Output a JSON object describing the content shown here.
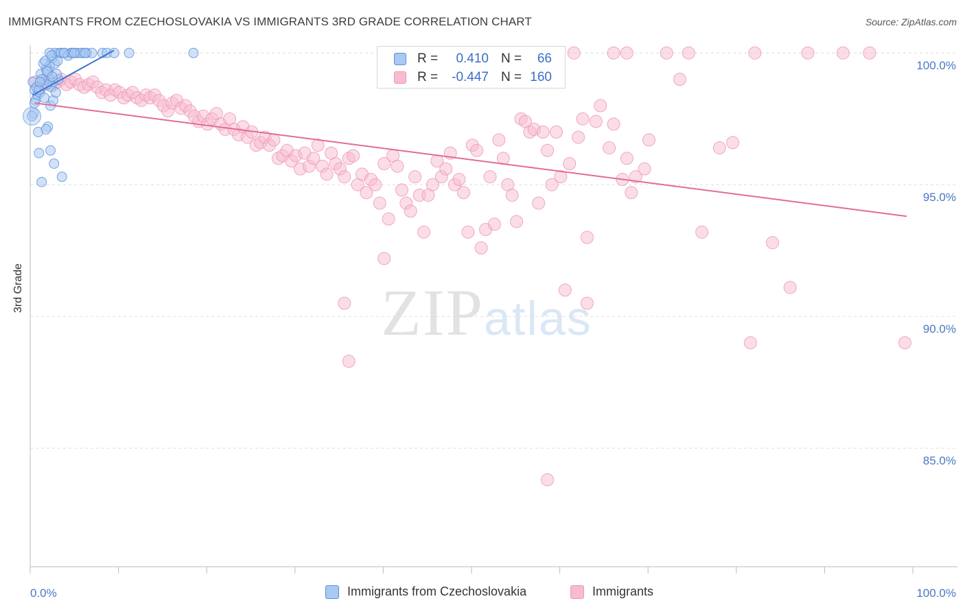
{
  "title": "IMMIGRANTS FROM CZECHOSLOVAKIA VS IMMIGRANTS 3RD GRADE CORRELATION CHART",
  "source": "Source: ZipAtlas.com",
  "watermark": {
    "zip": "ZIP",
    "atlas": "atlas"
  },
  "legend_top": {
    "rows": [
      {
        "r_label": "R = ",
        "r_value": "0.410",
        "n_label": "N = ",
        "n_value": "66",
        "swatch_color": "#a9c8f2"
      },
      {
        "r_label": "R = ",
        "r_value": "-0.447",
        "n_label": "N = ",
        "n_value": "160",
        "swatch_color": "#f8bcd0"
      }
    ]
  },
  "legend_bottom": [
    {
      "label": "Immigrants from Czechoslovakia",
      "color": "#a9c8f2"
    },
    {
      "label": "Immigrants",
      "color": "#f8bcd0"
    }
  ],
  "colors": {
    "blue_fill": "#a9c8f2",
    "blue_stroke": "#5b8fd8",
    "blue_line": "#3a76cf",
    "pink_fill": "#f8bcd0",
    "pink_stroke": "#ee94b2",
    "pink_line": "#e26a98",
    "grid": "#dddddd",
    "tick_text": "#4a77c4"
  },
  "chart_data": {
    "type": "scatter",
    "title": "IMMIGRANTS FROM CZECHOSLOVAKIA VS IMMIGRANTS 3RD GRADE CORRELATION CHART",
    "xlabel": "",
    "ylabel": "3rd Grade",
    "xlim": [
      0,
      100
    ],
    "ylim": [
      80.5,
      100.5
    ],
    "x_tick_labels": [
      "0.0%",
      "100.0%"
    ],
    "y_ticks": [
      100,
      95,
      90,
      85
    ],
    "y_tick_labels": [
      "100.0%",
      "95.0%",
      "90.0%",
      "85.0%"
    ],
    "grid": true,
    "legend_placement": "top-center",
    "series": [
      {
        "name": "Immigrants from Czechoslovakia",
        "color": "#a9c8f2",
        "R": 0.41,
        "N": 66,
        "trend": {
          "x": [
            0.3,
            9.5
          ],
          "y": [
            98.4,
            100.1
          ]
        },
        "points": [
          [
            0.3,
            98.9
          ],
          [
            0.5,
            98.6
          ],
          [
            0.8,
            98.4
          ],
          [
            0.6,
            98.2
          ],
          [
            0.4,
            97.7
          ],
          [
            0.9,
            97.0
          ],
          [
            1.0,
            96.2
          ],
          [
            1.3,
            95.1
          ],
          [
            1.1,
            98.5
          ],
          [
            1.4,
            98.8
          ],
          [
            1.6,
            99.0
          ],
          [
            1.2,
            99.2
          ],
          [
            1.8,
            99.4
          ],
          [
            2.0,
            99.3
          ],
          [
            1.5,
            99.6
          ],
          [
            2.2,
            99.5
          ],
          [
            2.5,
            99.8
          ],
          [
            2.8,
            100.0
          ],
          [
            1.7,
            99.7
          ],
          [
            2.1,
            98.9
          ],
          [
            2.4,
            98.7
          ],
          [
            2.6,
            98.9
          ],
          [
            1.9,
            98.8
          ],
          [
            1.6,
            98.3
          ],
          [
            2.3,
            98.0
          ],
          [
            2.0,
            97.2
          ],
          [
            1.8,
            97.1
          ],
          [
            2.3,
            96.3
          ],
          [
            2.7,
            95.8
          ],
          [
            3.6,
            95.3
          ],
          [
            2.6,
            98.2
          ],
          [
            2.9,
            98.5
          ],
          [
            3.2,
            99.0
          ],
          [
            3.0,
            99.2
          ],
          [
            2.2,
            100.0
          ],
          [
            3.3,
            100.0
          ],
          [
            3.5,
            100.0
          ],
          [
            4.6,
            100.0
          ],
          [
            4.9,
            100.0
          ],
          [
            5.3,
            100.0
          ],
          [
            6.0,
            100.0
          ],
          [
            6.4,
            100.0
          ],
          [
            7.0,
            100.0
          ],
          [
            8.2,
            100.0
          ],
          [
            8.7,
            100.0
          ],
          [
            9.5,
            100.0
          ],
          [
            11.2,
            100.0
          ],
          [
            18.5,
            100.0
          ],
          [
            3.9,
            100.0
          ],
          [
            4.3,
            99.9
          ],
          [
            4.7,
            100.0
          ],
          [
            5.7,
            100.0
          ],
          [
            6.2,
            100.0
          ],
          [
            2.8,
            99.6
          ],
          [
            1.3,
            99.0
          ],
          [
            0.7,
            98.7
          ],
          [
            1.0,
            98.6
          ],
          [
            0.5,
            98.1
          ],
          [
            1.1,
            98.9
          ],
          [
            1.9,
            99.3
          ],
          [
            2.5,
            99.1
          ],
          [
            3.1,
            99.7
          ],
          [
            3.8,
            100.0
          ],
          [
            5.0,
            100.0
          ],
          [
            2.4,
            99.9
          ],
          [
            0.2,
            97.6
          ]
        ]
      },
      {
        "name": "Immigrants",
        "color": "#f8bcd0",
        "R": -0.447,
        "N": 160,
        "trend": {
          "x": [
            0.5,
            99.3
          ],
          "y": [
            98.1,
            93.8
          ]
        },
        "points": [
          [
            0.6,
            98.9
          ],
          [
            1.1,
            98.7
          ],
          [
            1.6,
            98.8
          ],
          [
            2.1,
            99.0
          ],
          [
            2.6,
            98.8
          ],
          [
            3.1,
            98.9
          ],
          [
            3.5,
            99.0
          ],
          [
            4.1,
            98.8
          ],
          [
            4.6,
            98.9
          ],
          [
            5.1,
            99.0
          ],
          [
            5.6,
            98.8
          ],
          [
            6.1,
            98.7
          ],
          [
            6.6,
            98.8
          ],
          [
            7.1,
            98.9
          ],
          [
            7.6,
            98.7
          ],
          [
            8.1,
            98.5
          ],
          [
            8.6,
            98.6
          ],
          [
            9.1,
            98.4
          ],
          [
            9.6,
            98.6
          ],
          [
            10.1,
            98.5
          ],
          [
            10.6,
            98.3
          ],
          [
            11.1,
            98.4
          ],
          [
            11.6,
            98.5
          ],
          [
            12.1,
            98.3
          ],
          [
            12.6,
            98.2
          ],
          [
            13.1,
            98.4
          ],
          [
            13.6,
            98.3
          ],
          [
            14.1,
            98.4
          ],
          [
            14.6,
            98.2
          ],
          [
            15.1,
            98.0
          ],
          [
            15.6,
            97.8
          ],
          [
            16.1,
            98.1
          ],
          [
            16.6,
            98.2
          ],
          [
            17.1,
            97.9
          ],
          [
            17.6,
            98.0
          ],
          [
            18.1,
            97.8
          ],
          [
            18.6,
            97.6
          ],
          [
            19.1,
            97.4
          ],
          [
            19.6,
            97.6
          ],
          [
            20.1,
            97.3
          ],
          [
            20.6,
            97.5
          ],
          [
            21.1,
            97.7
          ],
          [
            21.6,
            97.3
          ],
          [
            22.1,
            97.1
          ],
          [
            22.6,
            97.5
          ],
          [
            23.1,
            97.1
          ],
          [
            23.6,
            96.9
          ],
          [
            24.1,
            97.2
          ],
          [
            24.6,
            96.8
          ],
          [
            25.1,
            97.0
          ],
          [
            25.6,
            96.5
          ],
          [
            26.1,
            96.6
          ],
          [
            26.6,
            96.8
          ],
          [
            27.1,
            96.5
          ],
          [
            27.6,
            96.7
          ],
          [
            28.1,
            96.0
          ],
          [
            28.6,
            96.1
          ],
          [
            29.1,
            96.3
          ],
          [
            29.6,
            95.9
          ],
          [
            30.1,
            96.1
          ],
          [
            30.6,
            95.6
          ],
          [
            31.1,
            96.2
          ],
          [
            31.6,
            95.7
          ],
          [
            32.1,
            96.0
          ],
          [
            32.6,
            96.5
          ],
          [
            33.1,
            95.7
          ],
          [
            33.6,
            95.4
          ],
          [
            34.1,
            96.2
          ],
          [
            34.6,
            95.8
          ],
          [
            35.1,
            95.6
          ],
          [
            35.6,
            95.3
          ],
          [
            36.1,
            96.0
          ],
          [
            36.6,
            96.1
          ],
          [
            37.1,
            95.0
          ],
          [
            37.6,
            95.4
          ],
          [
            38.1,
            94.7
          ],
          [
            38.6,
            95.2
          ],
          [
            39.1,
            95.0
          ],
          [
            39.6,
            94.3
          ],
          [
            40.1,
            95.8
          ],
          [
            40.6,
            93.7
          ],
          [
            41.1,
            96.1
          ],
          [
            41.6,
            95.7
          ],
          [
            42.1,
            94.8
          ],
          [
            42.6,
            94.3
          ],
          [
            43.1,
            94.0
          ],
          [
            43.6,
            95.3
          ],
          [
            44.1,
            94.6
          ],
          [
            44.6,
            93.2
          ],
          [
            45.1,
            94.6
          ],
          [
            45.6,
            95.0
          ],
          [
            46.1,
            95.9
          ],
          [
            46.6,
            95.3
          ],
          [
            47.1,
            95.6
          ],
          [
            47.6,
            96.2
          ],
          [
            48.1,
            95.0
          ],
          [
            48.6,
            95.2
          ],
          [
            49.1,
            94.7
          ],
          [
            49.6,
            93.2
          ],
          [
            50.1,
            96.5
          ],
          [
            50.6,
            96.3
          ],
          [
            51.1,
            92.6
          ],
          [
            51.6,
            93.3
          ],
          [
            52.1,
            95.3
          ],
          [
            52.6,
            93.5
          ],
          [
            53.1,
            96.7
          ],
          [
            53.6,
            96.0
          ],
          [
            54.1,
            95.0
          ],
          [
            54.6,
            94.6
          ],
          [
            55.1,
            93.6
          ],
          [
            55.6,
            97.5
          ],
          [
            56.1,
            97.4
          ],
          [
            56.6,
            97.0
          ],
          [
            57.1,
            97.1
          ],
          [
            57.6,
            94.3
          ],
          [
            58.1,
            97.0
          ],
          [
            58.6,
            96.3
          ],
          [
            59.1,
            95.0
          ],
          [
            59.6,
            97.0
          ],
          [
            60.1,
            95.3
          ],
          [
            60.6,
            91.0
          ],
          [
            61.1,
            95.8
          ],
          [
            62.1,
            96.8
          ],
          [
            62.6,
            97.5
          ],
          [
            63.1,
            90.5
          ],
          [
            64.1,
            97.4
          ],
          [
            64.6,
            98.0
          ],
          [
            65.6,
            96.4
          ],
          [
            66.1,
            97.3
          ],
          [
            67.1,
            95.2
          ],
          [
            67.6,
            96.0
          ],
          [
            68.1,
            94.7
          ],
          [
            68.6,
            95.3
          ],
          [
            69.6,
            95.6
          ],
          [
            70.1,
            96.7
          ],
          [
            73.6,
            99.0
          ],
          [
            76.1,
            93.2
          ],
          [
            78.1,
            96.4
          ],
          [
            79.6,
            96.6
          ],
          [
            82.1,
            100.0
          ],
          [
            86.1,
            91.1
          ],
          [
            95.1,
            100.0
          ],
          [
            99.1,
            89.0
          ],
          [
            88.1,
            100.0
          ],
          [
            84.1,
            92.8
          ],
          [
            81.6,
            89.0
          ],
          [
            63.1,
            93.0
          ],
          [
            58.6,
            83.8
          ],
          [
            59.6,
            100.0
          ],
          [
            67.6,
            100.0
          ],
          [
            74.6,
            100.0
          ],
          [
            57.1,
            100.0
          ],
          [
            61.6,
            100.0
          ],
          [
            72.1,
            100.0
          ],
          [
            40.1,
            92.2
          ],
          [
            36.1,
            88.3
          ],
          [
            35.6,
            90.5
          ],
          [
            56.1,
            100.0
          ],
          [
            66.1,
            100.0
          ],
          [
            92.1,
            100.0
          ]
        ]
      }
    ]
  }
}
